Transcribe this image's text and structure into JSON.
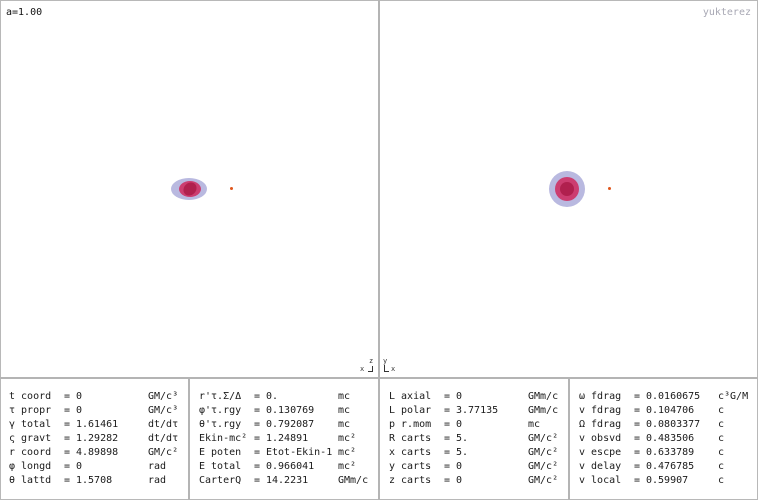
{
  "views": {
    "left": {
      "spin_label": "a=1.00"
    },
    "right": {
      "brand": "yukterez"
    }
  },
  "axes": {
    "left": {
      "vertical": "z",
      "horizontal": "x"
    },
    "right": {
      "vertical": "y",
      "horizontal": "x"
    }
  },
  "colors": {
    "ergosphere": "#b9b9e0",
    "horizon": "#cc3d70",
    "core": "#b0204e",
    "particle": "#e0561c"
  },
  "panels": [
    {
      "rows": [
        {
          "label": "t coord",
          "value": "0",
          "unit": "GM/c³"
        },
        {
          "label": "τ propr",
          "value": "0",
          "unit": "GM/c³"
        },
        {
          "label": "γ total",
          "value": "1.61461",
          "unit": "dt/dτ"
        },
        {
          "label": "ς gravt",
          "value": "1.29282",
          "unit": "dt/dτ"
        },
        {
          "label": "r coord",
          "value": "4.89898",
          "unit": "GM/c²"
        },
        {
          "label": "φ longd",
          "value": "0",
          "unit": "rad"
        },
        {
          "label": "θ lattd",
          "value": "1.5708",
          "unit": "rad"
        }
      ]
    },
    {
      "rows": [
        {
          "label": "r'τ.Σ/Δ",
          "value": "0.",
          "unit": "mc"
        },
        {
          "label": "φ'τ.rgy",
          "value": "0.130769",
          "unit": "mc"
        },
        {
          "label": "θ'τ.rgy",
          "value": "0.792087",
          "unit": "mc"
        },
        {
          "label": "Ekin-mc²",
          "value": "1.24891",
          "unit": "mc²"
        },
        {
          "label": "E poten",
          "value": "Etot-Ekin-1",
          "unit": "mc²"
        },
        {
          "label": "E total",
          "value": "0.966041",
          "unit": "mc²"
        },
        {
          "label": "CarterQ",
          "value": "14.2231",
          "unit": "GMm/c"
        }
      ]
    },
    {
      "rows": [
        {
          "label": "L axial",
          "value": "0",
          "unit": "GMm/c"
        },
        {
          "label": "L polar",
          "value": "3.77135",
          "unit": "GMm/c"
        },
        {
          "label": "p r.mom",
          "value": "0",
          "unit": "mc"
        },
        {
          "label": "R carts",
          "value": "5.",
          "unit": "GM/c²"
        },
        {
          "label": "x carts",
          "value": "5.",
          "unit": "GM/c²"
        },
        {
          "label": "y carts",
          "value": "0",
          "unit": "GM/c²"
        },
        {
          "label": "z carts",
          "value": "0",
          "unit": "GM/c²"
        }
      ]
    },
    {
      "rows": [
        {
          "label": "ω fdrag",
          "value": "0.0160675",
          "unit": "c³G/M"
        },
        {
          "label": "v fdrag",
          "value": "0.104706",
          "unit": "c"
        },
        {
          "label": "Ω fdrag",
          "value": "0.0803377",
          "unit": "c"
        },
        {
          "label": "v obsvd",
          "value": "0.483506",
          "unit": "c"
        },
        {
          "label": "v escpe",
          "value": "0.633789",
          "unit": "c"
        },
        {
          "label": "v delay",
          "value": "0.476785",
          "unit": "c"
        },
        {
          "label": "v local",
          "value": "0.59907",
          "unit": "c"
        }
      ]
    }
  ]
}
